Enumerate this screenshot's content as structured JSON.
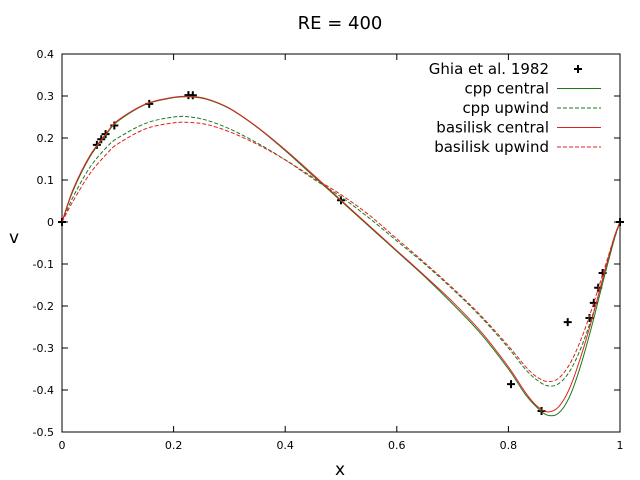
{
  "chart_data": {
    "type": "line",
    "title": "RE = 400",
    "xlabel": "x",
    "ylabel": "v",
    "xlim": [
      0,
      1
    ],
    "ylim": [
      -0.5,
      0.4
    ],
    "xticks": [
      0,
      0.2,
      0.4,
      0.6,
      0.8,
      1
    ],
    "xtick_labels": [
      "0",
      "0.2",
      "0.4",
      "0.6",
      "0.8",
      "1"
    ],
    "yticks": [
      -0.5,
      -0.4,
      -0.3,
      -0.2,
      -0.1,
      0,
      0.1,
      0.2,
      0.3,
      0.4
    ],
    "ytick_labels": [
      "-0.5",
      "-0.4",
      "-0.3",
      "-0.2",
      "-0.1",
      "0",
      "0.1",
      "0.2",
      "0.3",
      "0.4"
    ],
    "grid": false,
    "legend_position": "top-right",
    "series": [
      {
        "name": "Ghia et al. 1982",
        "style": "points",
        "color": "#000000",
        "x": [
          0.0,
          0.0625,
          0.0703,
          0.0781,
          0.0938,
          0.1563,
          0.2266,
          0.2344,
          0.5,
          0.8047,
          0.8594,
          0.9063,
          0.9453,
          0.9531,
          0.9609,
          0.9688,
          1.0
        ],
        "y": [
          0.0,
          0.1836,
          0.1971,
          0.2092,
          0.2297,
          0.2812,
          0.302,
          0.3017,
          0.0519,
          -0.3859,
          -0.4499,
          -0.2383,
          -0.2285,
          -0.1925,
          -0.1566,
          -0.1215,
          0.0
        ]
      },
      {
        "name": "cpp central",
        "style": "solid",
        "color": "#1a7a1a",
        "x": [
          0,
          0.02,
          0.05,
          0.08,
          0.1,
          0.15,
          0.2,
          0.23,
          0.26,
          0.3,
          0.35,
          0.4,
          0.45,
          0.5,
          0.55,
          0.6,
          0.65,
          0.7,
          0.75,
          0.8,
          0.83,
          0.85,
          0.87,
          0.89,
          0.91,
          0.93,
          0.95,
          0.97,
          0.99,
          1.0
        ],
        "y": [
          0,
          0.075,
          0.155,
          0.21,
          0.24,
          0.28,
          0.296,
          0.298,
          0.292,
          0.27,
          0.225,
          0.17,
          0.11,
          0.05,
          -0.01,
          -0.07,
          -0.13,
          -0.195,
          -0.265,
          -0.35,
          -0.41,
          -0.44,
          -0.46,
          -0.455,
          -0.415,
          -0.34,
          -0.245,
          -0.14,
          -0.04,
          0
        ]
      },
      {
        "name": "cpp upwind",
        "style": "dashed",
        "color": "#1a7a1a",
        "x": [
          0,
          0.02,
          0.05,
          0.08,
          0.1,
          0.15,
          0.2,
          0.23,
          0.26,
          0.3,
          0.35,
          0.4,
          0.45,
          0.5,
          0.55,
          0.6,
          0.65,
          0.7,
          0.75,
          0.8,
          0.83,
          0.85,
          0.87,
          0.89,
          0.91,
          0.93,
          0.95,
          0.97,
          0.99,
          1.0
        ],
        "y": [
          0,
          0.06,
          0.13,
          0.178,
          0.2,
          0.235,
          0.25,
          0.25,
          0.242,
          0.222,
          0.188,
          0.148,
          0.103,
          0.06,
          0.01,
          -0.045,
          -0.1,
          -0.16,
          -0.225,
          -0.3,
          -0.35,
          -0.375,
          -0.39,
          -0.385,
          -0.355,
          -0.3,
          -0.225,
          -0.135,
          -0.04,
          0
        ]
      },
      {
        "name": "basilisk central",
        "style": "solid",
        "color": "#e02020",
        "x": [
          0,
          0.02,
          0.05,
          0.08,
          0.1,
          0.15,
          0.2,
          0.23,
          0.26,
          0.3,
          0.35,
          0.4,
          0.45,
          0.5,
          0.55,
          0.6,
          0.65,
          0.7,
          0.75,
          0.8,
          0.83,
          0.85,
          0.87,
          0.89,
          0.91,
          0.93,
          0.95,
          0.97,
          0.99,
          1.0
        ],
        "y": [
          0,
          0.078,
          0.158,
          0.212,
          0.242,
          0.281,
          0.297,
          0.299,
          0.293,
          0.271,
          0.226,
          0.172,
          0.113,
          0.052,
          -0.008,
          -0.068,
          -0.128,
          -0.19,
          -0.26,
          -0.345,
          -0.405,
          -0.437,
          -0.452,
          -0.44,
          -0.395,
          -0.32,
          -0.23,
          -0.13,
          -0.035,
          0
        ]
      },
      {
        "name": "basilisk upwind",
        "style": "dashed",
        "color": "#e02020",
        "x": [
          0,
          0.02,
          0.05,
          0.08,
          0.1,
          0.15,
          0.2,
          0.23,
          0.26,
          0.3,
          0.35,
          0.4,
          0.45,
          0.5,
          0.55,
          0.6,
          0.65,
          0.7,
          0.75,
          0.8,
          0.83,
          0.85,
          0.87,
          0.89,
          0.91,
          0.93,
          0.95,
          0.97,
          0.99,
          1.0
        ],
        "y": [
          0,
          0.05,
          0.115,
          0.162,
          0.186,
          0.222,
          0.236,
          0.237,
          0.232,
          0.215,
          0.185,
          0.148,
          0.106,
          0.065,
          0.017,
          -0.04,
          -0.097,
          -0.157,
          -0.222,
          -0.295,
          -0.343,
          -0.368,
          -0.38,
          -0.372,
          -0.338,
          -0.28,
          -0.205,
          -0.12,
          -0.035,
          0
        ]
      }
    ]
  }
}
